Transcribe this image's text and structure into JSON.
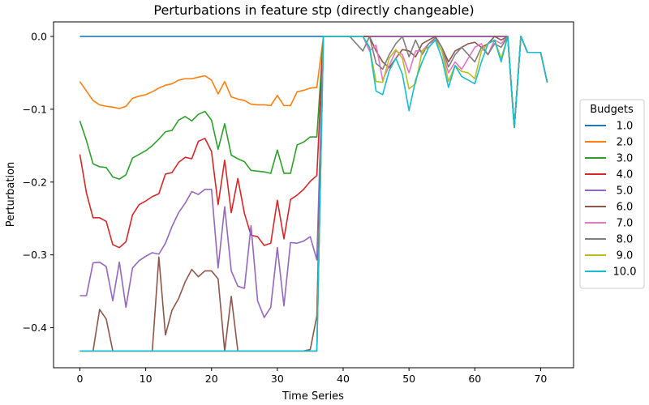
{
  "chart_data": {
    "type": "line",
    "title": "Perturbations in feature stp (directly changeable)",
    "xlabel": "Time Series",
    "ylabel": "Perturbation",
    "xlim": [
      -4,
      75
    ],
    "ylim": [
      -0.455,
      0.02
    ],
    "xticks": [
      0,
      10,
      20,
      30,
      40,
      50,
      60,
      70
    ],
    "xtick_labels": [
      "0",
      "10",
      "20",
      "30",
      "40",
      "50",
      "60",
      "70"
    ],
    "yticks": [
      0.0,
      -0.1,
      -0.2,
      -0.3,
      -0.4
    ],
    "ytick_labels": [
      "0.0",
      "−0.1",
      "−0.2",
      "−0.3",
      "−0.4"
    ],
    "legend_title": "Budgets",
    "legend_position": "right",
    "grid": false,
    "x": [
      0,
      1,
      2,
      3,
      4,
      5,
      6,
      7,
      8,
      9,
      10,
      11,
      12,
      13,
      14,
      15,
      16,
      17,
      18,
      19,
      20,
      21,
      22,
      23,
      24,
      25,
      26,
      27,
      28,
      29,
      30,
      31,
      32,
      33,
      34,
      35,
      36,
      37,
      38,
      39,
      40,
      41,
      42,
      43,
      44,
      45,
      46,
      47,
      48,
      49,
      50,
      51,
      52,
      53,
      54,
      55,
      56,
      57,
      58,
      59,
      60,
      61,
      62,
      63,
      64,
      65,
      66,
      67,
      68,
      69,
      70,
      71
    ],
    "series": [
      {
        "name": "1.0",
        "color": "#1f77b4",
        "values": [
          0,
          0,
          0,
          0,
          0,
          0,
          0,
          0,
          0,
          0,
          0,
          0,
          0,
          0,
          0,
          0,
          0,
          0,
          0,
          0,
          0,
          0,
          0,
          0,
          0,
          0,
          0,
          0,
          0,
          0,
          0,
          0,
          0,
          0,
          0,
          0,
          0,
          0,
          0,
          0,
          0,
          0,
          0,
          0,
          0,
          0,
          0,
          0,
          0,
          0,
          0,
          0,
          0,
          0,
          0,
          0,
          0,
          0,
          0,
          0,
          0,
          0,
          0,
          0,
          0,
          0,
          -0.125,
          0,
          -0.022,
          -0.022,
          -0.022,
          -0.063
        ]
      },
      {
        "name": "2.0",
        "color": "#ff7f0e",
        "values": [
          -0.062,
          -0.075,
          -0.088,
          -0.094,
          -0.096,
          -0.097,
          -0.099,
          -0.096,
          -0.085,
          -0.082,
          -0.08,
          -0.076,
          -0.071,
          -0.067,
          -0.065,
          -0.06,
          -0.058,
          -0.058,
          -0.056,
          -0.054,
          -0.06,
          -0.079,
          -0.062,
          -0.083,
          -0.086,
          -0.088,
          -0.093,
          -0.094,
          -0.094,
          -0.095,
          -0.081,
          -0.095,
          -0.095,
          -0.076,
          -0.074,
          -0.071,
          -0.07,
          0,
          0,
          0,
          0,
          0,
          0,
          0,
          0,
          0,
          0,
          0,
          0,
          0,
          0,
          0,
          0,
          0,
          0,
          0,
          0,
          0,
          0,
          0,
          0,
          0,
          0,
          0,
          0,
          0,
          -0.125,
          0,
          -0.022,
          -0.022,
          -0.022,
          -0.063
        ]
      },
      {
        "name": "3.0",
        "color": "#2ca02c",
        "values": [
          -0.116,
          -0.143,
          -0.175,
          -0.179,
          -0.18,
          -0.193,
          -0.196,
          -0.19,
          -0.167,
          -0.162,
          -0.157,
          -0.15,
          -0.141,
          -0.131,
          -0.129,
          -0.115,
          -0.11,
          -0.116,
          -0.107,
          -0.103,
          -0.115,
          -0.155,
          -0.12,
          -0.163,
          -0.168,
          -0.172,
          -0.184,
          -0.185,
          -0.186,
          -0.188,
          -0.156,
          -0.188,
          -0.188,
          -0.149,
          -0.145,
          -0.138,
          -0.138,
          0,
          0,
          0,
          0,
          0,
          0,
          0,
          0,
          0,
          0,
          0,
          0,
          0,
          0,
          0,
          0,
          0,
          0,
          0,
          0,
          0,
          0,
          0,
          0,
          0,
          0,
          0,
          0,
          0,
          -0.125,
          0,
          -0.022,
          -0.022,
          -0.022,
          -0.063
        ]
      },
      {
        "name": "4.0",
        "color": "#d62728",
        "values": [
          -0.162,
          -0.215,
          -0.249,
          -0.249,
          -0.254,
          -0.286,
          -0.29,
          -0.282,
          -0.245,
          -0.231,
          -0.226,
          -0.22,
          -0.216,
          -0.189,
          -0.187,
          -0.173,
          -0.166,
          -0.168,
          -0.144,
          -0.14,
          -0.158,
          -0.231,
          -0.17,
          -0.242,
          -0.195,
          -0.243,
          -0.273,
          -0.275,
          -0.287,
          -0.284,
          -0.225,
          -0.278,
          -0.224,
          -0.218,
          -0.21,
          -0.199,
          -0.191,
          0,
          0,
          0,
          0,
          0,
          0,
          0,
          0,
          0,
          0,
          0,
          0,
          0,
          0,
          0,
          0,
          0,
          0,
          0,
          0,
          0,
          0,
          0,
          0,
          0,
          0,
          0,
          0,
          0,
          -0.125,
          0,
          -0.022,
          -0.022,
          -0.022,
          -0.063
        ]
      },
      {
        "name": "5.0",
        "color": "#9467bd",
        "values": [
          -0.356,
          -0.356,
          -0.311,
          -0.31,
          -0.316,
          -0.363,
          -0.31,
          -0.372,
          -0.318,
          -0.308,
          -0.302,
          -0.297,
          -0.299,
          -0.284,
          -0.261,
          -0.242,
          -0.229,
          -0.213,
          -0.217,
          -0.21,
          -0.21,
          -0.318,
          -0.234,
          -0.322,
          -0.343,
          -0.346,
          -0.26,
          -0.363,
          -0.386,
          -0.372,
          -0.29,
          -0.37,
          -0.283,
          -0.284,
          -0.281,
          -0.275,
          -0.307,
          0,
          0,
          0,
          0,
          0,
          0,
          0,
          0,
          0,
          0,
          0,
          0,
          0,
          0,
          0,
          0,
          0,
          0,
          0,
          0,
          0,
          0,
          0,
          0,
          0,
          0,
          0,
          0,
          0,
          -0.125,
          0,
          -0.022,
          -0.022,
          -0.022,
          -0.063
        ]
      },
      {
        "name": "6.0",
        "color": "#8c564b",
        "values": [
          -0.432,
          -0.432,
          -0.432,
          -0.375,
          -0.388,
          -0.432,
          -0.432,
          -0.432,
          -0.432,
          -0.432,
          -0.432,
          -0.432,
          -0.303,
          -0.41,
          -0.376,
          -0.36,
          -0.337,
          -0.32,
          -0.33,
          -0.322,
          -0.322,
          -0.333,
          -0.432,
          -0.357,
          -0.432,
          -0.432,
          -0.432,
          -0.432,
          -0.432,
          -0.432,
          -0.432,
          -0.432,
          -0.432,
          -0.432,
          -0.432,
          -0.43,
          -0.384,
          0,
          0,
          0,
          0,
          0,
          0,
          0,
          0,
          -0.02,
          -0.035,
          -0.043,
          -0.03,
          -0.018,
          -0.02,
          -0.028,
          -0.01,
          -0.005,
          0,
          -0.015,
          -0.035,
          -0.02,
          -0.015,
          -0.01,
          -0.008,
          -0.015,
          -0.01,
          0,
          -0.005,
          0,
          -0.125,
          0,
          -0.022,
          -0.022,
          -0.022,
          -0.063
        ]
      },
      {
        "name": "7.0",
        "color": "#e377c2",
        "values": [
          -0.432,
          -0.432,
          -0.432,
          -0.432,
          -0.432,
          -0.432,
          -0.432,
          -0.432,
          -0.432,
          -0.432,
          -0.432,
          -0.432,
          -0.432,
          -0.432,
          -0.432,
          -0.432,
          -0.432,
          -0.432,
          -0.432,
          -0.432,
          -0.432,
          -0.432,
          -0.432,
          -0.432,
          -0.432,
          -0.432,
          -0.432,
          -0.432,
          -0.432,
          -0.432,
          -0.432,
          -0.432,
          -0.432,
          -0.432,
          -0.432,
          -0.432,
          -0.432,
          0,
          0,
          0,
          0,
          0,
          0,
          0,
          -0.02,
          -0.012,
          -0.06,
          -0.04,
          -0.02,
          -0.025,
          -0.05,
          -0.02,
          -0.02,
          -0.01,
          -0.005,
          -0.02,
          -0.05,
          -0.035,
          -0.045,
          -0.03,
          -0.015,
          -0.01,
          -0.025,
          -0.005,
          -0.01,
          0,
          -0.125,
          0,
          -0.022,
          -0.022,
          -0.022,
          -0.063
        ]
      },
      {
        "name": "8.0",
        "color": "#7f7f7f",
        "values": [
          -0.432,
          -0.432,
          -0.432,
          -0.432,
          -0.432,
          -0.432,
          -0.432,
          -0.432,
          -0.432,
          -0.432,
          -0.432,
          -0.432,
          -0.432,
          -0.432,
          -0.432,
          -0.432,
          -0.432,
          -0.432,
          -0.432,
          -0.432,
          -0.432,
          -0.432,
          -0.432,
          -0.432,
          -0.432,
          -0.432,
          -0.432,
          -0.432,
          -0.432,
          -0.432,
          -0.432,
          -0.432,
          -0.432,
          -0.432,
          -0.432,
          -0.432,
          -0.432,
          0,
          0,
          0,
          0,
          0,
          -0.01,
          -0.02,
          0,
          -0.037,
          -0.045,
          -0.025,
          -0.01,
          0,
          -0.028,
          -0.005,
          -0.025,
          -0.01,
          -0.002,
          -0.015,
          -0.042,
          -0.025,
          -0.015,
          -0.025,
          -0.035,
          -0.015,
          -0.025,
          -0.01,
          -0.015,
          0,
          -0.125,
          0,
          -0.022,
          -0.022,
          -0.022,
          -0.063
        ]
      },
      {
        "name": "9.0",
        "color": "#bcbd22",
        "values": [
          -0.432,
          -0.432,
          -0.432,
          -0.432,
          -0.432,
          -0.432,
          -0.432,
          -0.432,
          -0.432,
          -0.432,
          -0.432,
          -0.432,
          -0.432,
          -0.432,
          -0.432,
          -0.432,
          -0.432,
          -0.432,
          -0.432,
          -0.432,
          -0.432,
          -0.432,
          -0.432,
          -0.432,
          -0.432,
          -0.432,
          -0.432,
          -0.432,
          -0.432,
          -0.432,
          -0.432,
          -0.432,
          -0.432,
          -0.432,
          -0.432,
          -0.432,
          -0.432,
          0,
          0,
          0,
          0,
          0,
          0,
          0,
          -0.015,
          -0.062,
          -0.063,
          -0.03,
          -0.018,
          -0.03,
          -0.072,
          -0.065,
          -0.02,
          -0.015,
          -0.005,
          -0.02,
          -0.062,
          -0.04,
          -0.048,
          -0.05,
          -0.058,
          -0.02,
          -0.01,
          -0.005,
          -0.03,
          0,
          -0.125,
          0,
          -0.022,
          -0.022,
          -0.022,
          -0.063
        ]
      },
      {
        "name": "10.0",
        "color": "#17becf",
        "values": [
          -0.432,
          -0.432,
          -0.432,
          -0.432,
          -0.432,
          -0.432,
          -0.432,
          -0.432,
          -0.432,
          -0.432,
          -0.432,
          -0.432,
          -0.432,
          -0.432,
          -0.432,
          -0.432,
          -0.432,
          -0.432,
          -0.432,
          -0.432,
          -0.432,
          -0.432,
          -0.432,
          -0.432,
          -0.432,
          -0.432,
          -0.432,
          -0.432,
          -0.432,
          -0.432,
          -0.432,
          -0.432,
          -0.432,
          -0.432,
          -0.432,
          -0.432,
          -0.432,
          0,
          0,
          0,
          0,
          0,
          0,
          0,
          -0.015,
          -0.075,
          -0.08,
          -0.047,
          -0.03,
          -0.052,
          -0.102,
          -0.06,
          -0.035,
          -0.015,
          -0.005,
          -0.03,
          -0.07,
          -0.04,
          -0.055,
          -0.06,
          -0.065,
          -0.035,
          -0.01,
          -0.005,
          -0.035,
          0,
          -0.125,
          0,
          -0.022,
          -0.022,
          -0.022,
          -0.063
        ]
      }
    ]
  }
}
